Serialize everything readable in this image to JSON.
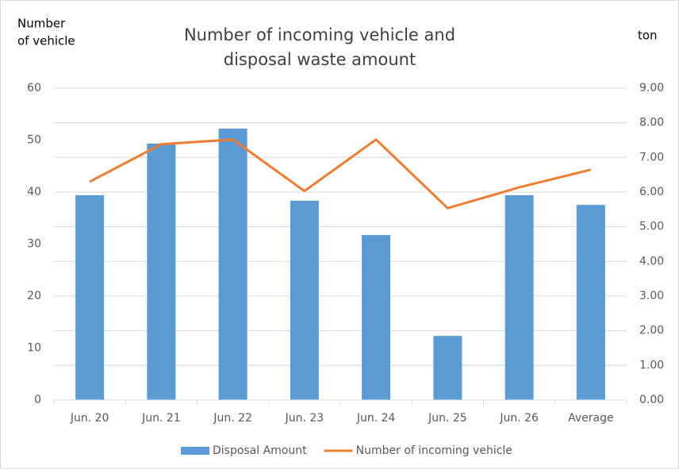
{
  "chart_data": {
    "type": "bar-line",
    "title": [
      "Number of incoming vehicle and",
      "disposal waste amount"
    ],
    "y_label": [
      "Number",
      "of vehicle"
    ],
    "y2_label": "ton",
    "categories": [
      "Jun. 20",
      "Jun. 21",
      "Jun. 22",
      "Jun. 23",
      "Jun. 24",
      "Jun. 25",
      "Jun. 26",
      "Average"
    ],
    "series": [
      {
        "name": "Disposal Amount",
        "type": "bar",
        "axis": "y2",
        "color": "#5b9bd5",
        "values": [
          5.91,
          7.4,
          7.83,
          5.75,
          4.76,
          1.85,
          5.91,
          5.63
        ]
      },
      {
        "name": "Number of incoming vehicle",
        "type": "line",
        "axis": "y",
        "color": "#ed7d31",
        "values": [
          42.0,
          49.2,
          50.1,
          40.2,
          50.1,
          36.9,
          40.9,
          44.3
        ]
      }
    ],
    "ylim": [
      0,
      60
    ],
    "yticks": [
      0,
      10,
      20,
      30,
      40,
      50,
      60
    ],
    "y2lim": [
      0,
      9
    ],
    "y2ticks": [
      {
        "value": 0,
        "label": "0.00"
      },
      {
        "value": 1,
        "label": "1.00"
      },
      {
        "value": 2,
        "label": "2.00"
      },
      {
        "value": 3,
        "label": "3.00"
      },
      {
        "value": 4,
        "label": "4.00"
      },
      {
        "value": 5,
        "label": "5.00"
      },
      {
        "value": 6,
        "label": "6.00"
      },
      {
        "value": 7,
        "label": "7.00"
      },
      {
        "value": 8,
        "label": "8.00"
      },
      {
        "value": 9,
        "label": "9.00"
      }
    ],
    "grid": true,
    "legend": "bottom"
  }
}
